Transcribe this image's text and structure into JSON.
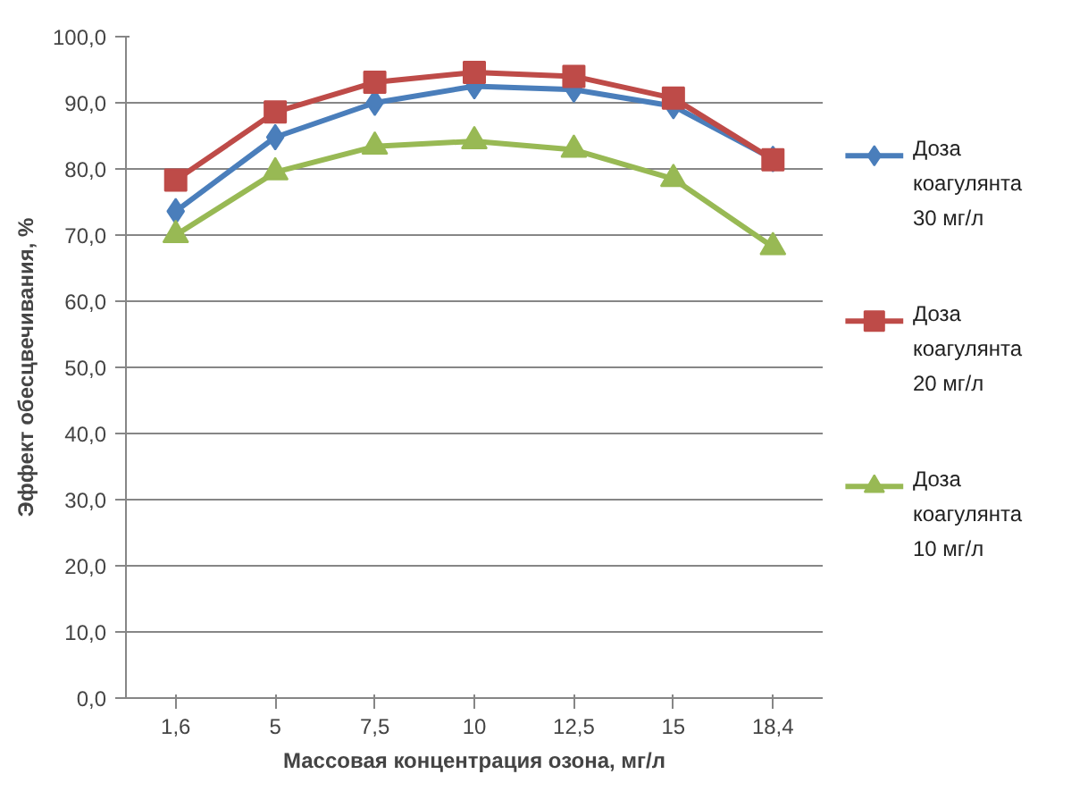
{
  "chart_data": {
    "type": "line",
    "xlabel": "Массовая концентрация озона, мг/л",
    "ylabel": "Эффект обесцвечивания, %",
    "categories": [
      "1,6",
      "5",
      "7,5",
      "10",
      "12,5",
      "15",
      "18,4"
    ],
    "ylim": [
      0,
      100
    ],
    "yticks": [
      {
        "value": 0,
        "label": "0,0"
      },
      {
        "value": 10,
        "label": "10,0"
      },
      {
        "value": 20,
        "label": "20,0"
      },
      {
        "value": 30,
        "label": "30,0"
      },
      {
        "value": 40,
        "label": "40,0"
      },
      {
        "value": 50,
        "label": "50,0"
      },
      {
        "value": 60,
        "label": "60,0"
      },
      {
        "value": 70,
        "label": "70,0"
      },
      {
        "value": 80,
        "label": "80,0"
      },
      {
        "value": 90,
        "label": "90,0"
      },
      {
        "value": 100,
        "label": "100,0"
      }
    ],
    "grid": "y",
    "legend": "right",
    "series": [
      {
        "name": "Доза коагулянта 30 мг/л",
        "color": "#4a7ebb",
        "marker": "diamond",
        "values": [
          73.6,
          84.8,
          90.0,
          92.5,
          92.0,
          89.5,
          81.5
        ]
      },
      {
        "name": "Доза коагулянта 20 мг/л",
        "color": "#be4b48",
        "marker": "square",
        "values": [
          78.3,
          88.6,
          93.1,
          94.6,
          94.0,
          90.7,
          81.4
        ]
      },
      {
        "name": "Доза коагулянта 10 мг/л",
        "color": "#98b954",
        "marker": "triangle",
        "values": [
          70.0,
          79.5,
          83.4,
          84.2,
          82.9,
          78.5,
          68.2
        ]
      }
    ]
  }
}
